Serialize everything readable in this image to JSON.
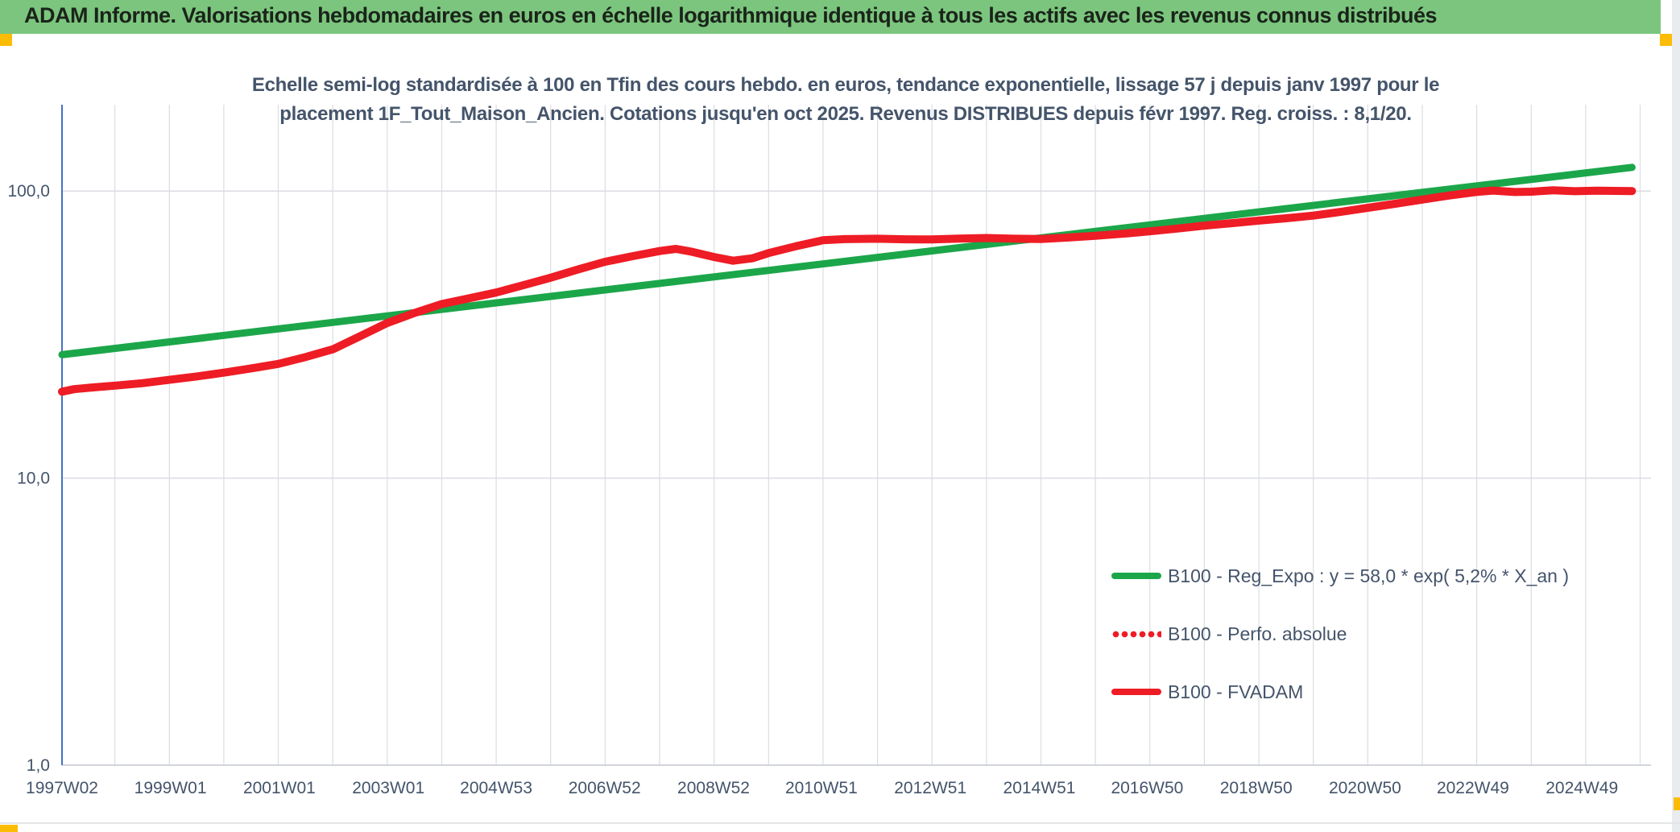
{
  "header": {
    "title": "ADAM Informe. Valorisations hebdomadaires en euros en échelle logarithmique identique à tous les actifs avec les revenus connus distribués"
  },
  "chart_data": {
    "type": "line",
    "title_line1": "Echelle semi-log standardisée à 100 en Tfin des cours hebdo. en euros, tendance exponentielle, lissage 57 j depuis janv 1997 pour le",
    "title_line2": "placement 1F_Tout_Maison_Ancien. Cotations jusqu'en oct 2025. Revenus DISTRIBUES depuis févr 1997. Reg. croiss. : 8,1/20.",
    "colors": {
      "gridline": "#DADDE2",
      "x_axis_line": "#C2C7CF",
      "y_axis_line": "#4472C4",
      "text": "#44546A",
      "green_line": "#1CA64A",
      "red_line": "#EE1C25",
      "header_green": "#7CC57E",
      "gold_accent": "#FBBC05"
    },
    "x_axis": {
      "grid_from_year": 1998,
      "grid_to_year": 2026,
      "ticks": [
        {
          "label": "1997W02",
          "year": 1997.03
        },
        {
          "label": "1999W01",
          "year": 1999.02
        },
        {
          "label": "2001W01",
          "year": 2001.02
        },
        {
          "label": "2003W01",
          "year": 2003.02
        },
        {
          "label": "2004W53",
          "year": 2005.0
        },
        {
          "label": "2006W52",
          "year": 2006.99
        },
        {
          "label": "2008W52",
          "year": 2008.99
        },
        {
          "label": "2010W51",
          "year": 2010.97
        },
        {
          "label": "2012W51",
          "year": 2012.97
        },
        {
          "label": "2014W51",
          "year": 2014.97
        },
        {
          "label": "2016W50",
          "year": 2016.95
        },
        {
          "label": "2018W50",
          "year": 2018.95
        },
        {
          "label": "2020W50",
          "year": 2020.95
        },
        {
          "label": "2022W49",
          "year": 2022.93
        },
        {
          "label": "2024W49",
          "year": 2024.93
        }
      ]
    },
    "y_axis": {
      "scale": "log",
      "min": 1.0,
      "max": 200,
      "ticks": [
        {
          "value": 1,
          "label": "1,0"
        },
        {
          "value": 10,
          "label": "10,0"
        },
        {
          "value": 100,
          "label": "100,0"
        }
      ]
    },
    "legend": [
      {
        "label": "B100 - Reg_Expo : y = 58,0 * exp( 5,2% * X_an )",
        "color": "#1CA64A",
        "style": "solid"
      },
      {
        "label": "B100 - Perfo. absolue",
        "color": "#EE1C25",
        "style": "dotted"
      },
      {
        "label": "B100 - FVADAM",
        "color": "#EE1C25",
        "style": "solid"
      }
    ],
    "series": [
      {
        "name": "B100 - Reg_Expo : y = 58,0 * exp( 5,2% * X_an )",
        "color": "#1CA64A",
        "style": "solid",
        "width": 9,
        "points": [
          [
            1997.03,
            26.9
          ],
          [
            2025.85,
            120.9
          ]
        ]
      },
      {
        "name": "B100 - Perfo. absolue",
        "color": "#EE1C25",
        "style": "dotted",
        "width": 9,
        "points_ref": 2
      },
      {
        "name": "B100 - FVADAM",
        "color": "#EE1C25",
        "style": "solid",
        "width": 10,
        "points": [
          [
            1997.03,
            20.0
          ],
          [
            1997.25,
            20.4
          ],
          [
            1997.6,
            20.7
          ],
          [
            1998.0,
            21.0
          ],
          [
            1998.5,
            21.4
          ],
          [
            1999.0,
            22.0
          ],
          [
            1999.5,
            22.6
          ],
          [
            2000.0,
            23.3
          ],
          [
            2000.5,
            24.1
          ],
          [
            2001.0,
            25.0
          ],
          [
            2001.5,
            26.4
          ],
          [
            2002.0,
            28.1
          ],
          [
            2002.5,
            31.2
          ],
          [
            2003.0,
            34.7
          ],
          [
            2003.5,
            37.6
          ],
          [
            2004.0,
            40.4
          ],
          [
            2004.5,
            42.3
          ],
          [
            2005.0,
            44.3
          ],
          [
            2005.5,
            47.0
          ],
          [
            2006.0,
            49.9
          ],
          [
            2006.5,
            53.3
          ],
          [
            2007.0,
            56.7
          ],
          [
            2007.5,
            59.3
          ],
          [
            2008.0,
            61.8
          ],
          [
            2008.3,
            62.9
          ],
          [
            2008.6,
            61.4
          ],
          [
            2009.0,
            58.9
          ],
          [
            2009.35,
            57.2
          ],
          [
            2009.7,
            58.3
          ],
          [
            2010.0,
            60.8
          ],
          [
            2010.5,
            64.2
          ],
          [
            2011.0,
            67.4
          ],
          [
            2011.4,
            68.0
          ],
          [
            2012.0,
            68.2
          ],
          [
            2012.5,
            67.9
          ],
          [
            2013.0,
            67.8
          ],
          [
            2013.5,
            68.3
          ],
          [
            2014.0,
            68.6
          ],
          [
            2014.5,
            68.2
          ],
          [
            2015.0,
            68.1
          ],
          [
            2015.5,
            68.9
          ],
          [
            2016.0,
            69.8
          ],
          [
            2016.5,
            71.0
          ],
          [
            2017.0,
            72.4
          ],
          [
            2017.5,
            74.0
          ],
          [
            2018.0,
            75.8
          ],
          [
            2018.5,
            77.3
          ],
          [
            2019.0,
            78.9
          ],
          [
            2019.5,
            80.4
          ],
          [
            2020.0,
            82.1
          ],
          [
            2020.5,
            84.6
          ],
          [
            2021.0,
            87.4
          ],
          [
            2021.5,
            90.3
          ],
          [
            2022.0,
            93.4
          ],
          [
            2022.5,
            96.5
          ],
          [
            2023.0,
            99.3
          ],
          [
            2023.3,
            100.4
          ],
          [
            2023.7,
            99.2
          ],
          [
            2024.0,
            99.5
          ],
          [
            2024.4,
            100.6
          ],
          [
            2024.8,
            99.9
          ],
          [
            2025.2,
            100.3
          ],
          [
            2025.85,
            100.0
          ]
        ]
      }
    ]
  }
}
